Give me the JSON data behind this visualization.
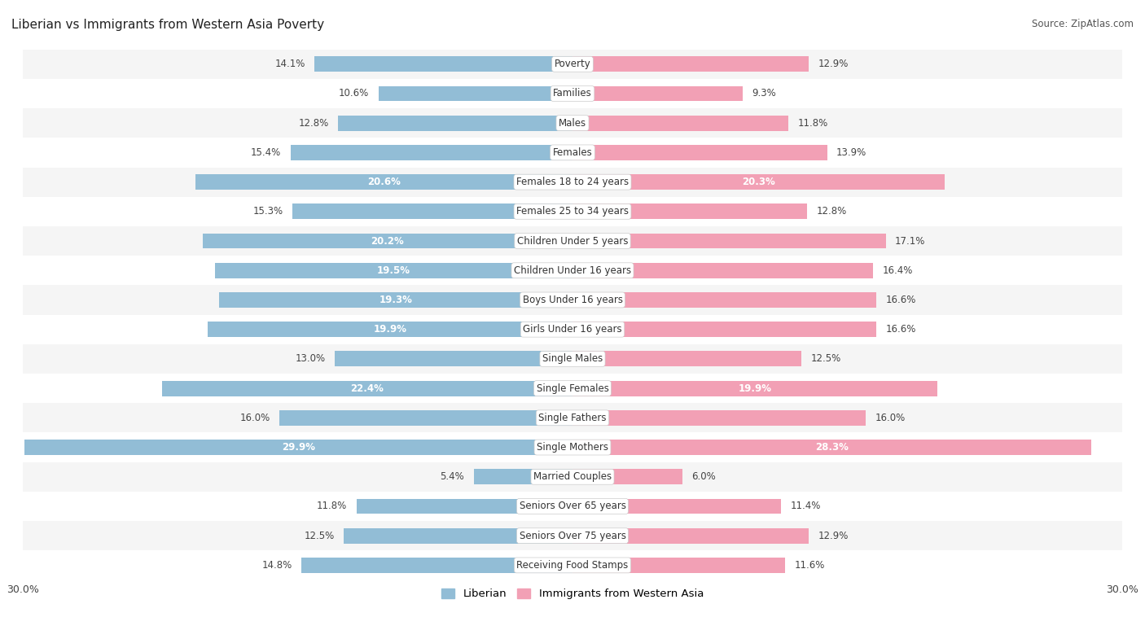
{
  "title": "Liberian vs Immigrants from Western Asia Poverty",
  "source": "Source: ZipAtlas.com",
  "categories": [
    "Poverty",
    "Families",
    "Males",
    "Females",
    "Females 18 to 24 years",
    "Females 25 to 34 years",
    "Children Under 5 years",
    "Children Under 16 years",
    "Boys Under 16 years",
    "Girls Under 16 years",
    "Single Males",
    "Single Females",
    "Single Fathers",
    "Single Mothers",
    "Married Couples",
    "Seniors Over 65 years",
    "Seniors Over 75 years",
    "Receiving Food Stamps"
  ],
  "liberian": [
    14.1,
    10.6,
    12.8,
    15.4,
    20.6,
    15.3,
    20.2,
    19.5,
    19.3,
    19.9,
    13.0,
    22.4,
    16.0,
    29.9,
    5.4,
    11.8,
    12.5,
    14.8
  ],
  "immigrants": [
    12.9,
    9.3,
    11.8,
    13.9,
    20.3,
    12.8,
    17.1,
    16.4,
    16.6,
    16.6,
    12.5,
    19.9,
    16.0,
    28.3,
    6.0,
    11.4,
    12.9,
    11.6
  ],
  "liberian_color": "#92bdd6",
  "immigrants_color": "#f2a0b5",
  "bg_row_light": "#f5f5f5",
  "bg_row_white": "#ffffff",
  "axis_max": 30.0,
  "legend_liberian": "Liberian",
  "legend_immigrants": "Immigrants from Western Asia",
  "bar_height": 0.52,
  "white_label_threshold": 17.5,
  "label_fontsize": 8.5,
  "cat_fontsize": 8.5,
  "title_fontsize": 11
}
